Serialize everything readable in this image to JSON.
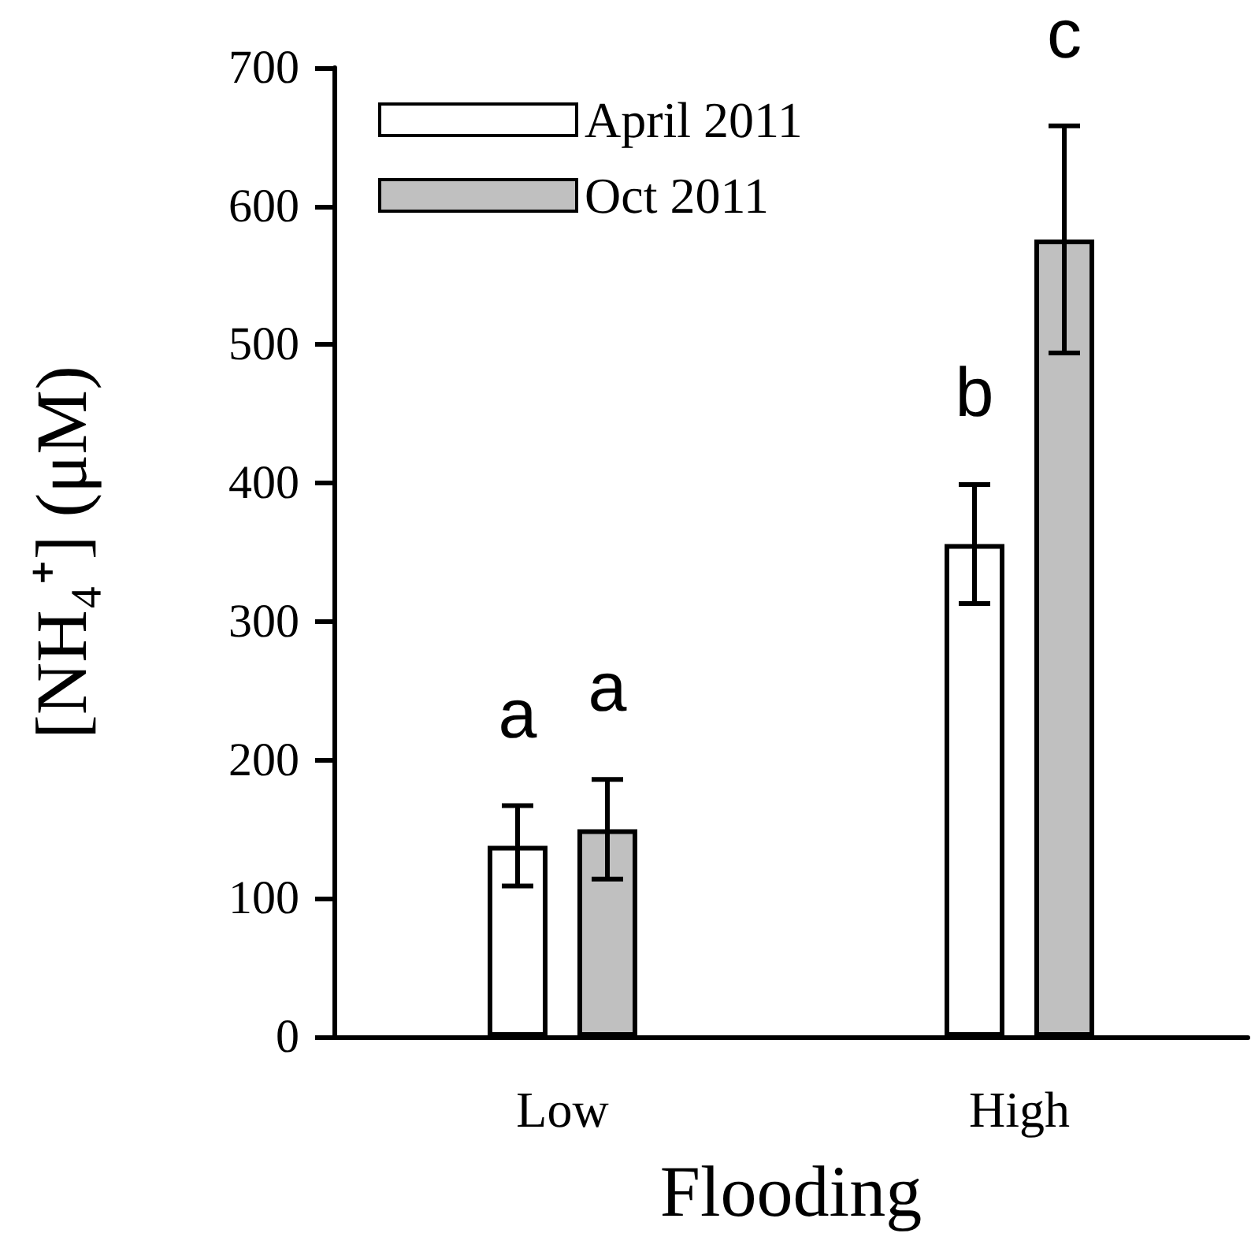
{
  "chart_data": {
    "type": "bar",
    "xlabel": "Flooding",
    "ylabel": "[NH₄⁺] (μM)",
    "categories": [
      "Low",
      "High"
    ],
    "series": [
      {
        "name": "April 2011",
        "color": "#ffffff",
        "values": [
          138,
          356
        ],
        "errors": [
          29,
          43
        ]
      },
      {
        "name": "Oct 2011",
        "color": "#c0c0c0",
        "values": [
          150,
          576
        ],
        "errors": [
          36,
          82
        ]
      }
    ],
    "ylim": [
      0,
      700
    ],
    "yticks": [
      0,
      100,
      200,
      300,
      400,
      500,
      600,
      700
    ],
    "grid": false,
    "legend": "top left",
    "annotations": [
      "a",
      "a",
      "b",
      "c"
    ]
  }
}
